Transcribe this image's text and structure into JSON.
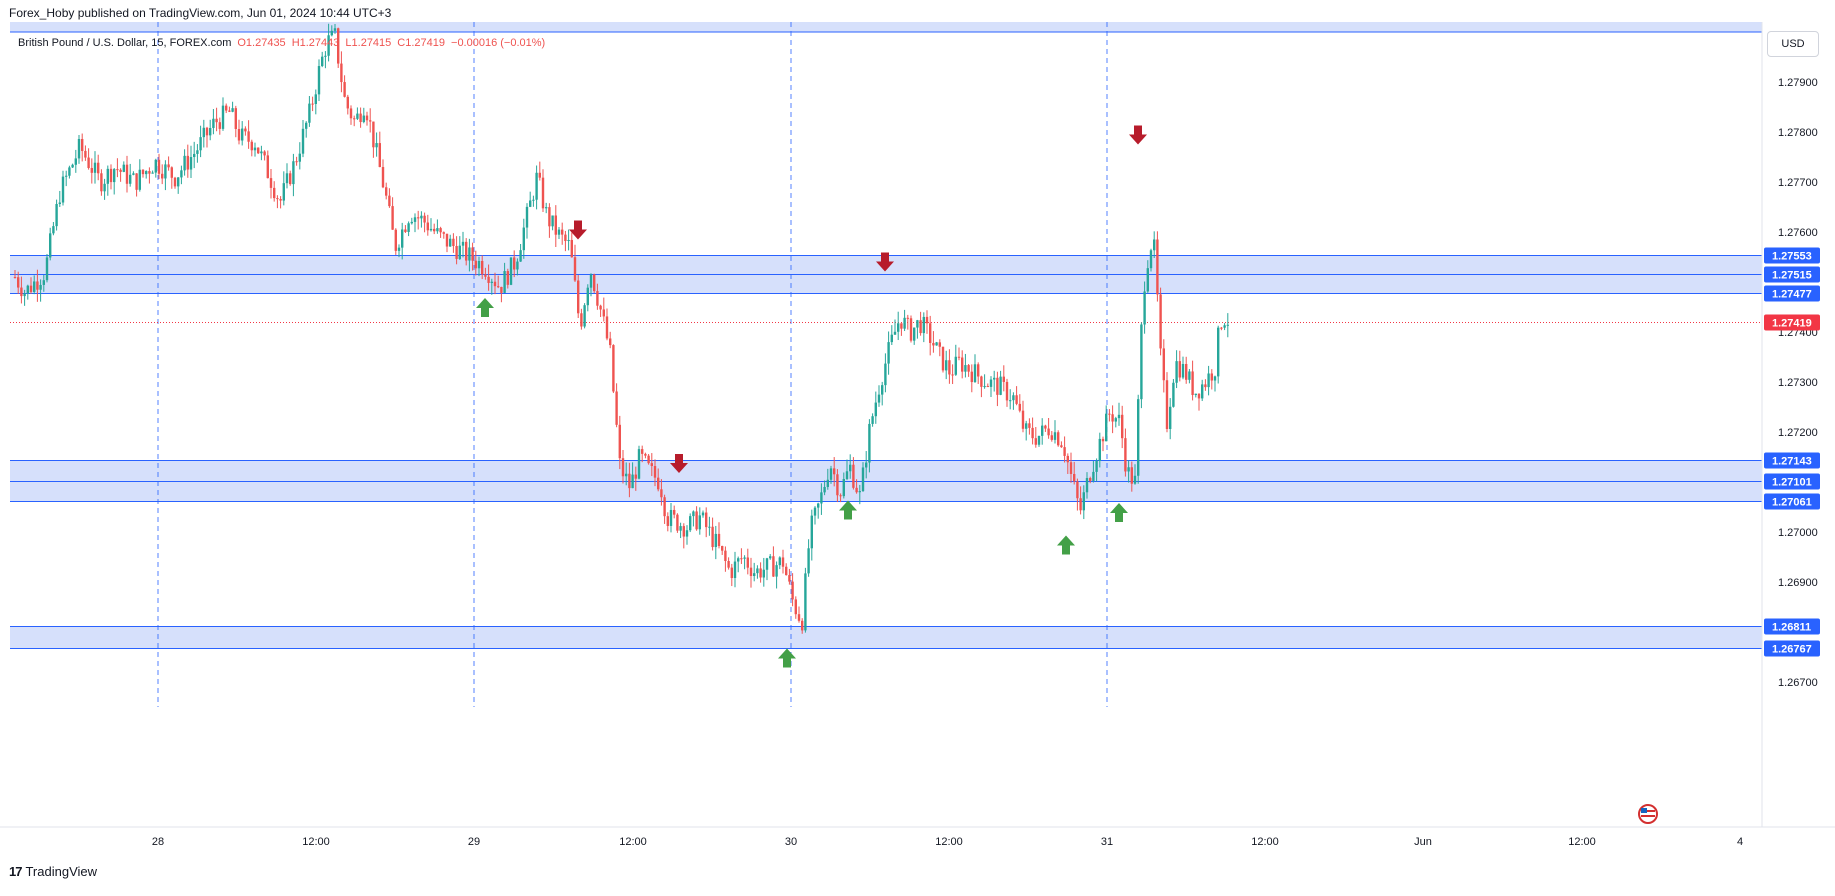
{
  "header": {
    "published": "Forex_Hoby published on TradingView.com, Jun 01, 2024 10:44 UTC+3"
  },
  "currency_button": "USD",
  "footer": {
    "brand": "TradingView"
  },
  "colors": {
    "up": "#26a69a",
    "down": "#ef5350",
    "zone_fill": "#d6e0fb",
    "zone_line": "#2962ff",
    "arrow_up": "#43a047",
    "arrow_down": "#b71c2b",
    "last_price": "#f23645"
  },
  "chart_data": {
    "type": "candlestick",
    "legend": {
      "symbol": "British Pound / U.S. Dollar, 15, FOREX.com",
      "open": "O1.27435",
      "high": "H1.27443",
      "low": "L1.27415",
      "close": "C1.27419",
      "change": "−0.00016 (−0.01%)"
    },
    "ylim": [
      1.2665,
      1.2802
    ],
    "y_ticks": [
      "1.27900",
      "1.27800",
      "1.27700",
      "1.27600",
      "1.27400",
      "1.27300",
      "1.27200",
      "1.27000",
      "1.26900",
      "1.26700"
    ],
    "x_ticks": [
      "28",
      "12:00",
      "29",
      "12:00",
      "30",
      "12:00",
      "31",
      "12:00",
      "Jun",
      "12:00",
      "4"
    ],
    "price_levels": [
      "1.27553",
      "1.27515",
      "1.27477",
      "1.27143",
      "1.27101",
      "1.27061",
      "1.26811",
      "1.26767"
    ],
    "zones": [
      {
        "top": 1.27553,
        "mid": 1.27515,
        "bottom": 1.27477
      },
      {
        "top": 1.27143,
        "mid": 1.27101,
        "bottom": 1.27061
      },
      {
        "top": 1.26811,
        "bottom": 1.26767
      }
    ],
    "last_price": "1.27419",
    "price_path": [
      [
        0,
        1.2751
      ],
      [
        10,
        1.2748
      ],
      [
        30,
        1.2752
      ],
      [
        45,
        1.2768
      ],
      [
        65,
        1.2777
      ],
      [
        85,
        1.277
      ],
      [
        100,
        1.2773
      ],
      [
        120,
        1.277
      ],
      [
        140,
        1.2774
      ],
      [
        160,
        1.2771
      ],
      [
        180,
        1.2776
      ],
      [
        200,
        1.2782
      ],
      [
        215,
        1.2784
      ],
      [
        225,
        1.2779
      ],
      [
        240,
        1.2778
      ],
      [
        255,
        1.2771
      ],
      [
        265,
        1.2766
      ],
      [
        280,
        1.2774
      ],
      [
        295,
        1.2784
      ],
      [
        305,
        1.2793
      ],
      [
        312,
        1.2798
      ],
      [
        320,
        1.2799
      ],
      [
        330,
        1.2786
      ],
      [
        340,
        1.2782
      ],
      [
        350,
        1.2786
      ],
      [
        360,
        1.2777
      ],
      [
        370,
        1.2768
      ],
      [
        380,
        1.2757
      ],
      [
        395,
        1.2764
      ],
      [
        410,
        1.2762
      ],
      [
        425,
        1.2759
      ],
      [
        440,
        1.2757
      ],
      [
        455,
        1.2755
      ],
      [
        470,
        1.2753
      ],
      [
        485,
        1.2749
      ],
      [
        500,
        1.2754
      ],
      [
        512,
        1.2763
      ],
      [
        522,
        1.2771
      ],
      [
        532,
        1.2763
      ],
      [
        545,
        1.2759
      ],
      [
        555,
        1.2757
      ],
      [
        565,
        1.2741
      ],
      [
        575,
        1.2753
      ],
      [
        585,
        1.2745
      ],
      [
        595,
        1.2736
      ],
      [
        605,
        1.2713
      ],
      [
        615,
        1.2709
      ],
      [
        625,
        1.2715
      ],
      [
        635,
        1.2712
      ],
      [
        645,
        1.271
      ],
      [
        652,
        1.2703
      ],
      [
        662,
        1.2702
      ],
      [
        672,
        1.2701
      ],
      [
        685,
        1.2703
      ],
      [
        700,
        1.2698
      ],
      [
        715,
        1.2692
      ],
      [
        728,
        1.2695
      ],
      [
        740,
        1.2692
      ],
      [
        755,
        1.2693
      ],
      [
        768,
        1.2694
      ],
      [
        778,
        1.2686
      ],
      [
        787,
        1.2682
      ],
      [
        795,
        1.27
      ],
      [
        805,
        1.2706
      ],
      [
        815,
        1.2714
      ],
      [
        825,
        1.2708
      ],
      [
        835,
        1.2713
      ],
      [
        845,
        1.2707
      ],
      [
        855,
        1.2721
      ],
      [
        865,
        1.273
      ],
      [
        875,
        1.2737
      ],
      [
        885,
        1.2743
      ],
      [
        895,
        1.274
      ],
      [
        905,
        1.2742
      ],
      [
        915,
        1.2739
      ],
      [
        925,
        1.2735
      ],
      [
        935,
        1.2732
      ],
      [
        945,
        1.2734
      ],
      [
        958,
        1.2732
      ],
      [
        972,
        1.273
      ],
      [
        985,
        1.2729
      ],
      [
        998,
        1.2727
      ],
      [
        1010,
        1.272
      ],
      [
        1022,
        1.2719
      ],
      [
        1035,
        1.2721
      ],
      [
        1048,
        1.2718
      ],
      [
        1055,
        1.2712
      ],
      [
        1065,
        1.2704
      ],
      [
        1075,
        1.2712
      ],
      [
        1085,
        1.2718
      ],
      [
        1095,
        1.2724
      ],
      [
        1105,
        1.2722
      ],
      [
        1112,
        1.2712
      ],
      [
        1120,
        1.271
      ],
      [
        1128,
        1.2748
      ],
      [
        1135,
        1.2758
      ],
      [
        1140,
        1.2756
      ],
      [
        1145,
        1.2736
      ],
      [
        1152,
        1.2722
      ],
      [
        1160,
        1.2734
      ],
      [
        1170,
        1.2732
      ],
      [
        1180,
        1.2728
      ],
      [
        1190,
        1.273
      ],
      [
        1200,
        1.2733
      ],
      [
        1205,
        1.2742
      ],
      [
        1210,
        1.2743
      ],
      [
        1215,
        1.2742
      ]
    ],
    "up_arrows": [
      [
        485,
        1.27448
      ],
      [
        848,
        1.27043
      ],
      [
        787,
        1.26747
      ],
      [
        1066,
        1.26973
      ],
      [
        1119,
        1.27038
      ]
    ],
    "down_arrows": [
      [
        578,
        1.27605
      ],
      [
        679,
        1.27138
      ],
      [
        885,
        1.27541
      ],
      [
        1138,
        1.27795
      ]
    ]
  }
}
